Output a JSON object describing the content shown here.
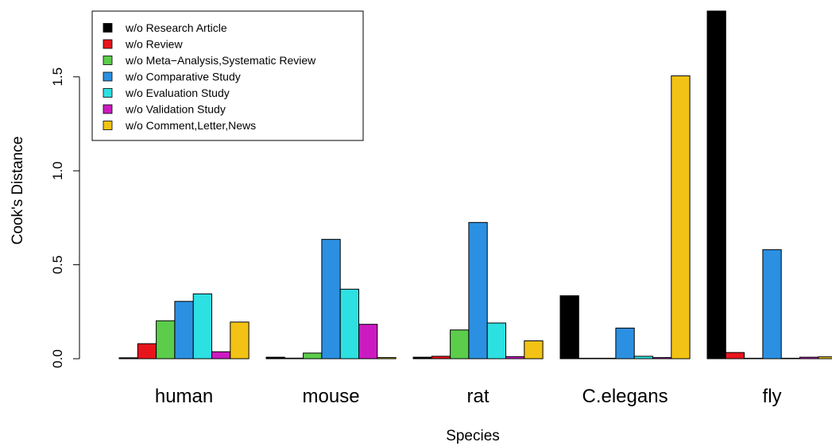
{
  "chart_data": {
    "type": "bar",
    "title": "",
    "xlabel": "Species",
    "ylabel": "Cook's Distance",
    "ylim": [
      0,
      1.85
    ],
    "yticks": [
      "0.0",
      "0.5",
      "1.0",
      "1.5"
    ],
    "ytick_values": [
      0,
      0.5,
      1.0,
      1.5
    ],
    "grid": false,
    "legend_position": "top-left",
    "categories": [
      "human",
      "mouse",
      "rat",
      "C.elegans",
      "fly"
    ],
    "series": [
      {
        "name": "w/o Research Article",
        "color": "#000000",
        "values": [
          0.005,
          0.008,
          0.008,
          0.335,
          1.85
        ]
      },
      {
        "name": "w/o Review",
        "color": "#e8141c",
        "values": [
          0.08,
          0.003,
          0.013,
          0.002,
          0.033
        ]
      },
      {
        "name": "w/o Meta−Analysis,Systematic Review",
        "color": "#5ccc4b",
        "values": [
          0.202,
          0.03,
          0.153,
          0.002,
          0.002
        ]
      },
      {
        "name": "w/o Comparative Study",
        "color": "#2b90e2",
        "values": [
          0.305,
          0.635,
          0.725,
          0.163,
          0.58
        ]
      },
      {
        "name": "w/o Evaluation Study",
        "color": "#2de0e2",
        "values": [
          0.345,
          0.37,
          0.19,
          0.013,
          0.002
        ]
      },
      {
        "name": "w/o Validation Study",
        "color": "#cb1bc0",
        "values": [
          0.037,
          0.183,
          0.011,
          0.006,
          0.008
        ]
      },
      {
        "name": "w/o Comment,Letter,News",
        "color": "#f2c314",
        "values": [
          0.195,
          0.006,
          0.095,
          1.505,
          0.01
        ]
      }
    ]
  }
}
